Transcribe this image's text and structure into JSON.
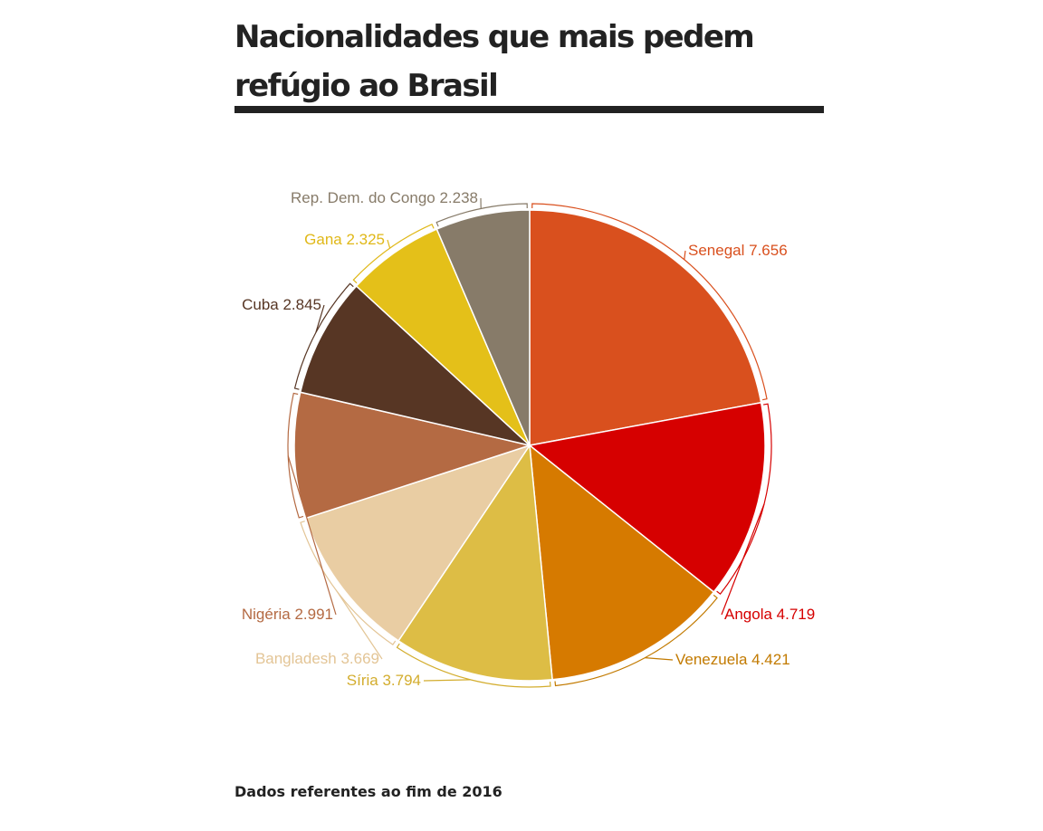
{
  "chart_data": {
    "type": "pie",
    "title": "Nacionalidades que mais pedem refúgio ao Brasil",
    "note": "Dados referentes ao fim de 2016",
    "slices": [
      {
        "label": "Senegal",
        "value": 7656,
        "value_text": "7.656",
        "color": "#D9501E"
      },
      {
        "label": "Angola",
        "value": 4719,
        "value_text": "4.719",
        "color": "#D60000"
      },
      {
        "label": "Venezuela",
        "value": 4421,
        "value_text": "4.421",
        "color": "#D67A00"
      },
      {
        "label": "Síria",
        "value": 3794,
        "value_text": "3.794",
        "color": "#DDBD45"
      },
      {
        "label": "Bangladesh",
        "value": 3669,
        "value_text": "3.669",
        "color": "#E9CDA3"
      },
      {
        "label": "Nigéria",
        "value": 2991,
        "value_text": "2.991",
        "color": "#B46A43"
      },
      {
        "label": "Cuba",
        "value": 2845,
        "value_text": "2.845",
        "color": "#573624"
      },
      {
        "label": "Gana",
        "value": 2325,
        "value_text": "2.325",
        "color": "#E4C019"
      },
      {
        "label": "Rep. Dem. do Congo",
        "value": 2238,
        "value_text": "2.238",
        "color": "#877B69"
      }
    ],
    "label_colors": {
      "Senegal": "#D9501E",
      "Angola": "#D60000",
      "Venezuela": "#C27A00",
      "Síria": "#D3AD2E",
      "Bangladesh": "#E3C596",
      "Nigéria": "#B46A43",
      "Cuba": "#573624",
      "Gana": "#E0B818",
      "Rep. Dem. do Congo": "#877B69"
    }
  }
}
